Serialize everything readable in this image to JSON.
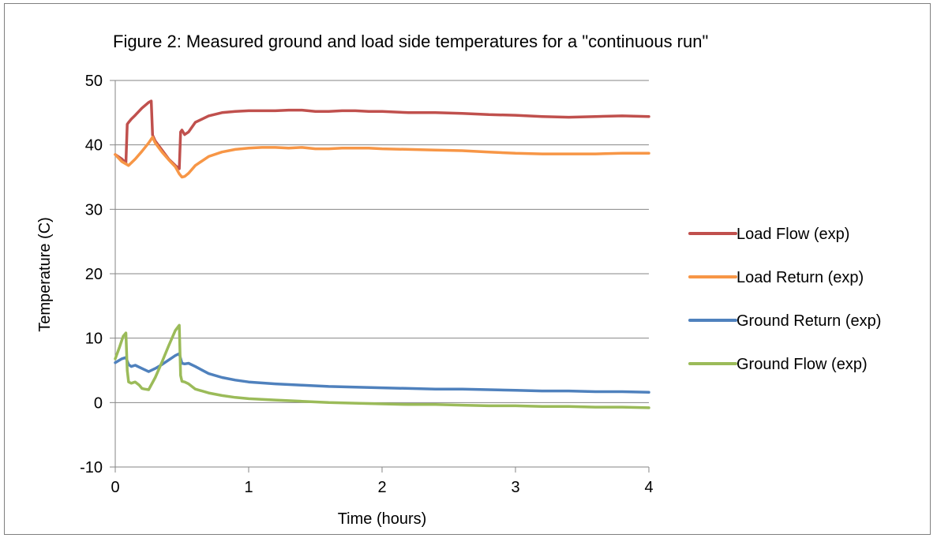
{
  "chart_data": {
    "type": "line",
    "title": "Figure 2: Measured ground and load side temperatures for a \"continuous run\"",
    "xlabel": "Time (hours)",
    "ylabel": "Temperature (C)",
    "xlim": [
      0,
      4
    ],
    "ylim": [
      -10,
      50
    ],
    "x_ticks": [
      0,
      1,
      2,
      3,
      4
    ],
    "y_ticks": [
      -10,
      0,
      10,
      20,
      30,
      40,
      50
    ],
    "grid": "horizontal",
    "legend_position": "right",
    "series": [
      {
        "name": "Load Flow (exp)",
        "color": "#c0504d",
        "x": [
          0.0,
          0.05,
          0.08,
          0.09,
          0.1,
          0.12,
          0.15,
          0.2,
          0.25,
          0.27,
          0.28,
          0.3,
          0.35,
          0.4,
          0.45,
          0.48,
          0.49,
          0.5,
          0.52,
          0.55,
          0.6,
          0.7,
          0.8,
          0.9,
          1.0,
          1.1,
          1.2,
          1.3,
          1.4,
          1.5,
          1.6,
          1.7,
          1.8,
          1.9,
          2.0,
          2.2,
          2.4,
          2.6,
          2.8,
          3.0,
          3.2,
          3.4,
          3.6,
          3.8,
          4.0
        ],
        "y": [
          38.5,
          37.8,
          37.2,
          43.2,
          43.5,
          44.0,
          44.6,
          45.7,
          46.6,
          46.8,
          41.5,
          40.6,
          39.2,
          37.8,
          36.8,
          36.3,
          42.0,
          42.3,
          41.6,
          42.0,
          43.5,
          44.5,
          45.0,
          45.2,
          45.3,
          45.3,
          45.3,
          45.4,
          45.4,
          45.2,
          45.2,
          45.3,
          45.3,
          45.2,
          45.2,
          45.0,
          45.0,
          44.9,
          44.7,
          44.6,
          44.4,
          44.3,
          44.4,
          44.5,
          44.4
        ]
      },
      {
        "name": "Load Return (exp)",
        "color": "#f79646",
        "x": [
          0.0,
          0.05,
          0.1,
          0.15,
          0.2,
          0.25,
          0.28,
          0.3,
          0.35,
          0.4,
          0.45,
          0.48,
          0.5,
          0.52,
          0.55,
          0.6,
          0.7,
          0.8,
          0.9,
          1.0,
          1.1,
          1.2,
          1.3,
          1.4,
          1.5,
          1.6,
          1.7,
          1.8,
          1.9,
          2.0,
          2.2,
          2.4,
          2.6,
          2.8,
          3.0,
          3.2,
          3.4,
          3.6,
          3.8,
          4.0
        ],
        "y": [
          38.5,
          37.4,
          36.8,
          37.8,
          39.0,
          40.3,
          41.2,
          40.3,
          38.9,
          37.7,
          36.6,
          35.5,
          35.0,
          35.1,
          35.6,
          36.8,
          38.2,
          38.9,
          39.3,
          39.5,
          39.6,
          39.6,
          39.5,
          39.6,
          39.4,
          39.4,
          39.5,
          39.5,
          39.5,
          39.4,
          39.3,
          39.2,
          39.1,
          38.9,
          38.7,
          38.6,
          38.6,
          38.6,
          38.7,
          38.7
        ]
      },
      {
        "name": "Ground Return (exp)",
        "color": "#4f81bd",
        "x": [
          0.0,
          0.05,
          0.08,
          0.1,
          0.12,
          0.15,
          0.2,
          0.25,
          0.3,
          0.35,
          0.4,
          0.45,
          0.48,
          0.5,
          0.52,
          0.55,
          0.6,
          0.7,
          0.8,
          0.9,
          1.0,
          1.2,
          1.4,
          1.6,
          1.8,
          2.0,
          2.2,
          2.4,
          2.6,
          2.8,
          3.0,
          3.2,
          3.4,
          3.6,
          3.8,
          4.0
        ],
        "y": [
          6.2,
          6.8,
          7.0,
          5.9,
          5.6,
          5.8,
          5.3,
          4.8,
          5.3,
          5.9,
          6.6,
          7.3,
          7.6,
          6.1,
          6.0,
          6.1,
          5.6,
          4.5,
          3.9,
          3.5,
          3.2,
          2.9,
          2.7,
          2.5,
          2.4,
          2.3,
          2.2,
          2.1,
          2.1,
          2.0,
          1.9,
          1.8,
          1.8,
          1.7,
          1.7,
          1.6
        ]
      },
      {
        "name": "Ground Flow (exp)",
        "color": "#9bbb59",
        "x": [
          0.0,
          0.03,
          0.06,
          0.08,
          0.09,
          0.1,
          0.12,
          0.15,
          0.18,
          0.2,
          0.22,
          0.25,
          0.3,
          0.35,
          0.4,
          0.45,
          0.48,
          0.49,
          0.5,
          0.52,
          0.55,
          0.6,
          0.7,
          0.8,
          0.9,
          1.0,
          1.2,
          1.4,
          1.6,
          1.8,
          2.0,
          2.2,
          2.4,
          2.6,
          2.8,
          3.0,
          3.2,
          3.4,
          3.6,
          3.8,
          4.0
        ],
        "y": [
          6.8,
          8.5,
          10.3,
          10.8,
          5.0,
          3.2,
          3.0,
          3.2,
          2.7,
          2.2,
          2.1,
          2.0,
          3.9,
          6.3,
          8.8,
          11.2,
          12.0,
          4.2,
          3.3,
          3.2,
          2.9,
          2.1,
          1.5,
          1.1,
          0.8,
          0.6,
          0.4,
          0.2,
          0.0,
          -0.1,
          -0.2,
          -0.3,
          -0.3,
          -0.4,
          -0.5,
          -0.5,
          -0.6,
          -0.6,
          -0.7,
          -0.7,
          -0.8
        ]
      }
    ]
  }
}
